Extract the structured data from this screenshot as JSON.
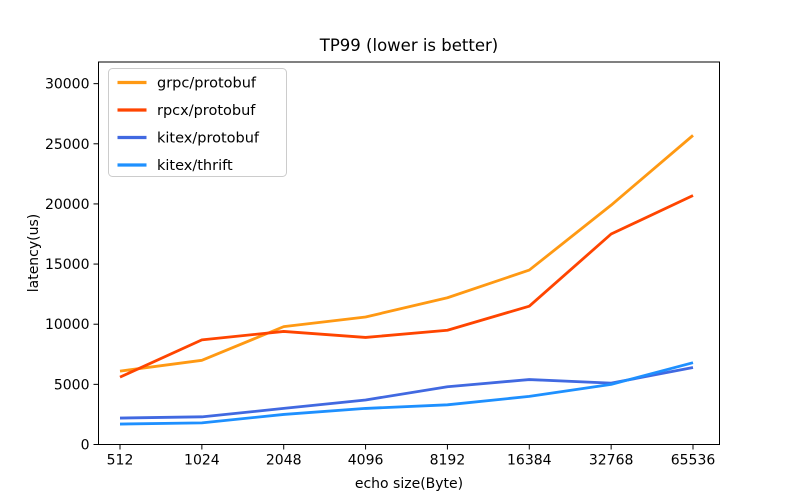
{
  "chart_data": {
    "type": "line",
    "title": "TP99 (lower is better)",
    "xlabel": "echo size(Byte)",
    "ylabel": "latency(us)",
    "categories": [
      "512",
      "1024",
      "2048",
      "4096",
      "8192",
      "16384",
      "32768",
      "65536"
    ],
    "yticks": [
      0,
      5000,
      10000,
      15000,
      20000,
      25000,
      30000
    ],
    "ylim": [
      0,
      31800
    ],
    "grid": false,
    "legend_position": "upper-left",
    "axis_color": "#000000",
    "legend_border_color": "#cccccc",
    "series": [
      {
        "name": "grpc/protobuf",
        "color": "#ff9913",
        "values": [
          6100,
          7000,
          9800,
          10600,
          12200,
          14500,
          19900,
          25700
        ]
      },
      {
        "name": "rpcx/protobuf",
        "color": "#ff4500",
        "values": [
          5600,
          8700,
          9400,
          8900,
          9500,
          11500,
          17500,
          20700
        ]
      },
      {
        "name": "kitex/protobuf",
        "color": "#4169e1",
        "values": [
          2200,
          2300,
          3000,
          3700,
          4800,
          5400,
          5100,
          6400
        ]
      },
      {
        "name": "kitex/thrift",
        "color": "#1e90ff",
        "values": [
          1700,
          1800,
          2500,
          3000,
          3300,
          4000,
          5000,
          6800
        ]
      }
    ]
  }
}
